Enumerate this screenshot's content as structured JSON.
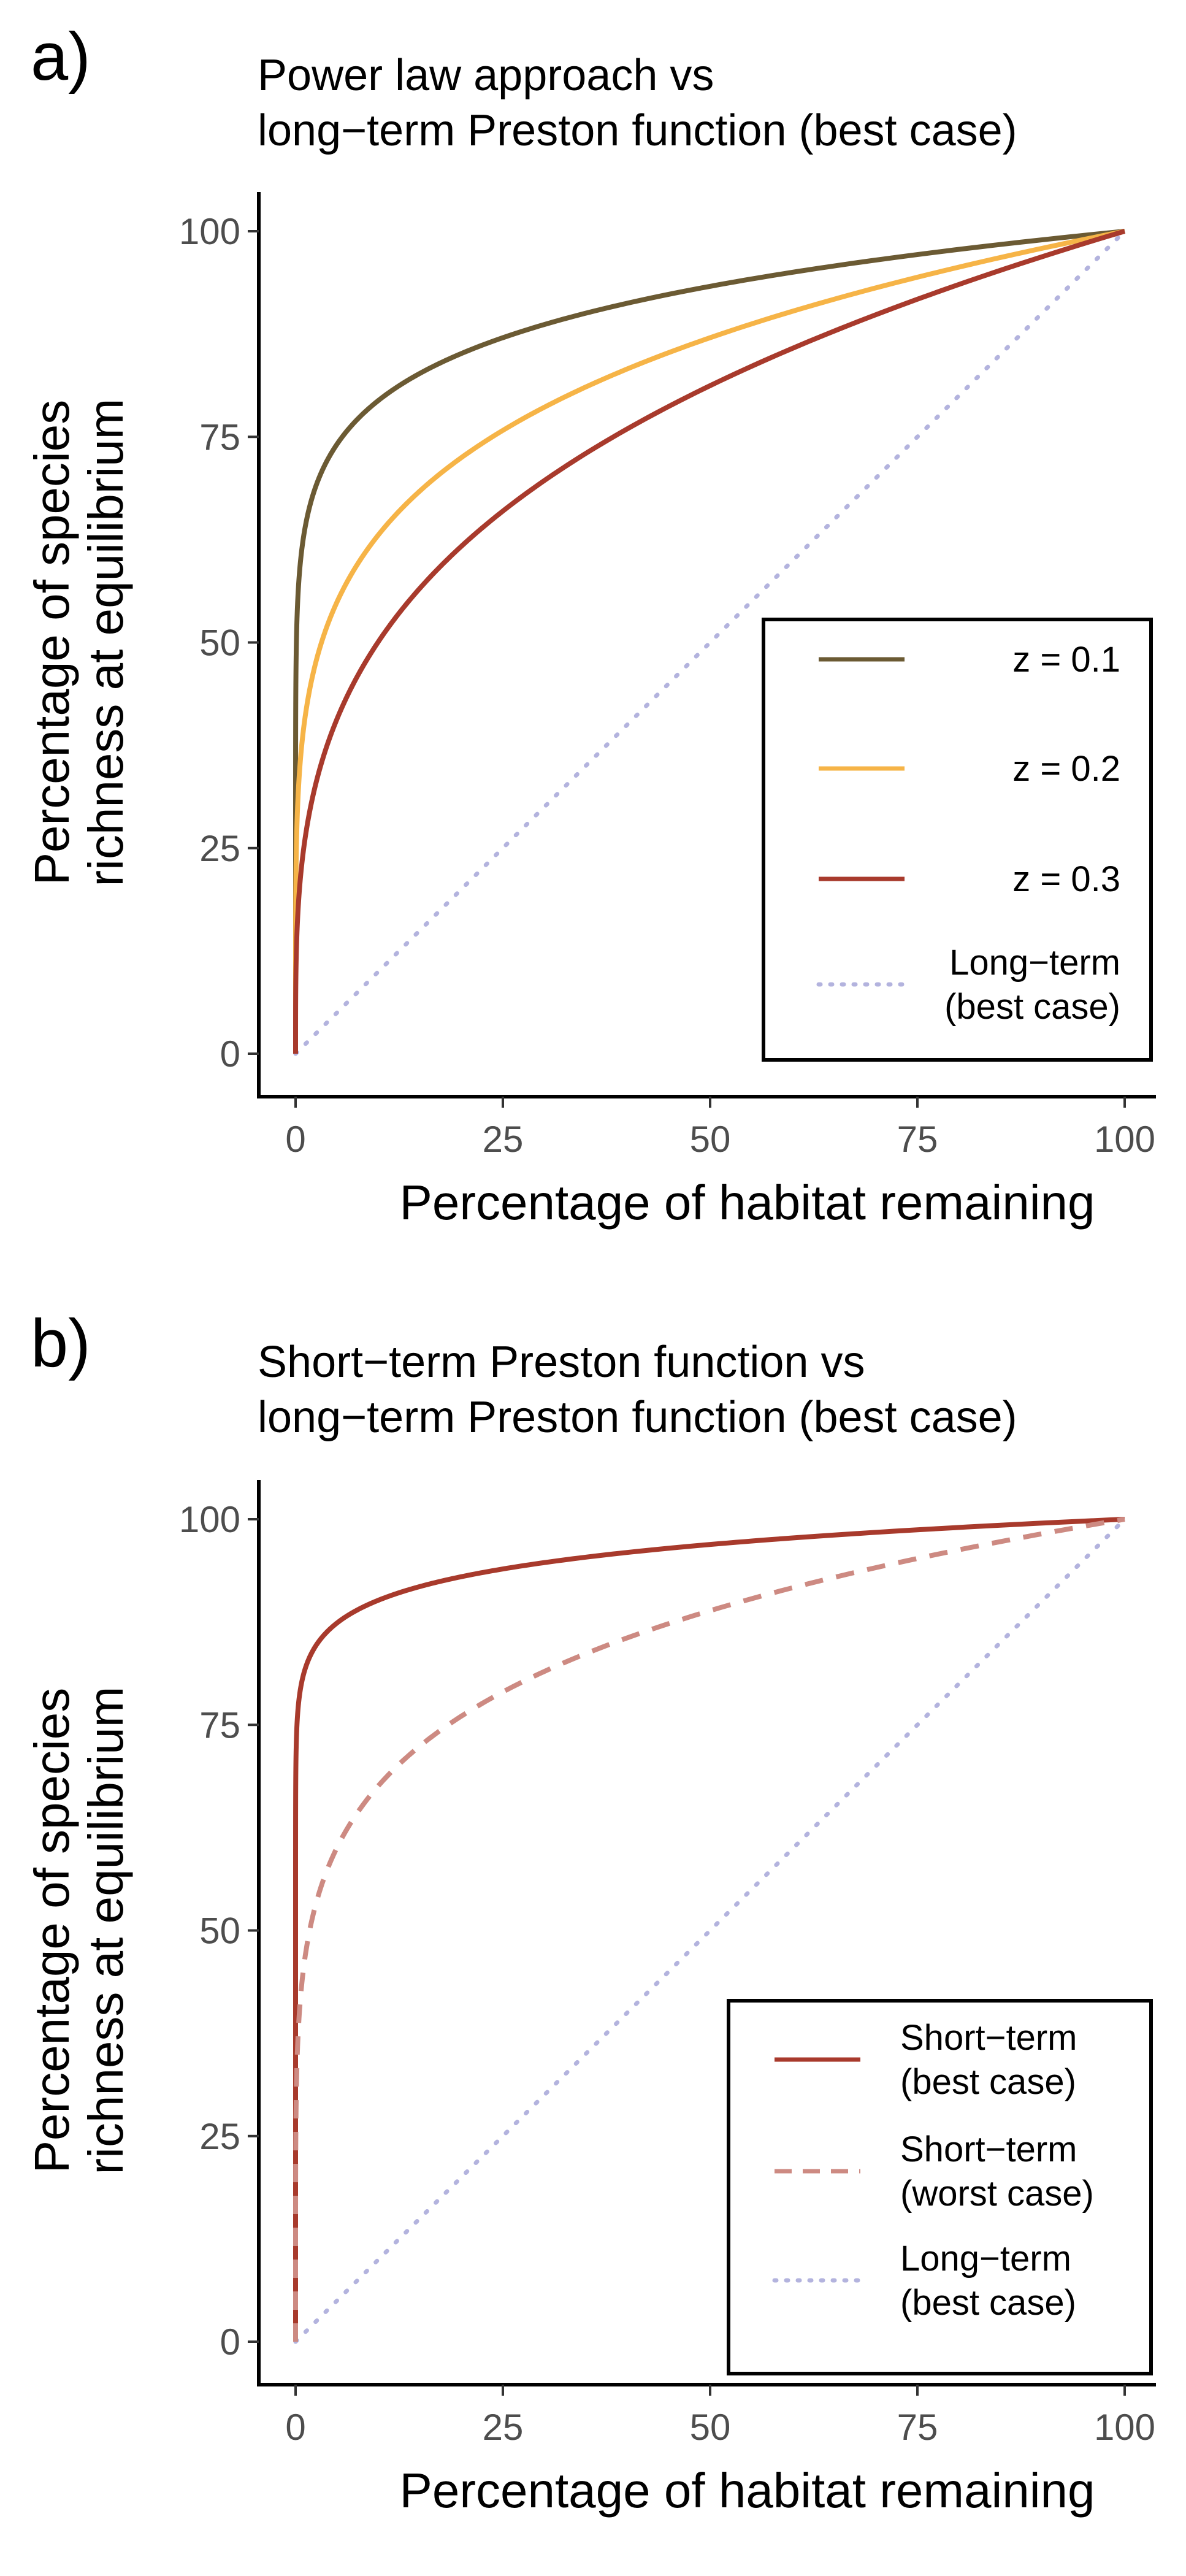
{
  "chart_data": [
    {
      "type": "line",
      "panel_label": "a)",
      "title": [
        "Power law approach vs",
        "long−term Preston function (best case)"
      ],
      "xlabel": "Percentage of habitat remaining",
      "ylabel": [
        "Percentage of species",
        "richness at equilibrium"
      ],
      "xlim": [
        0,
        100
      ],
      "ylim": [
        0,
        100
      ],
      "x_ticks": [
        0,
        25,
        50,
        75,
        100
      ],
      "y_ticks": [
        0,
        25,
        50,
        75,
        100
      ],
      "grid": false,
      "legend_position": "bottom-right",
      "series": [
        {
          "name": "z = 0.1",
          "legend_lines": [
            "z = 0.1"
          ],
          "color": "#6b5a33",
          "style": "solid",
          "kind": "power",
          "z": 0.1
        },
        {
          "name": "z = 0.2",
          "legend_lines": [
            "z = 0.2"
          ],
          "color": "#f6b447",
          "style": "solid",
          "kind": "power",
          "z": 0.2
        },
        {
          "name": "z = 0.3",
          "legend_lines": [
            "z = 0.3"
          ],
          "color": "#a83a2c",
          "style": "solid",
          "kind": "power",
          "z": 0.3
        },
        {
          "name": "Long−term (best case)",
          "legend_lines": [
            "Long−term",
            "(best case)"
          ],
          "color": "#b3b3de",
          "style": "dotted",
          "kind": "linear"
        }
      ]
    },
    {
      "type": "line",
      "panel_label": "b)",
      "title": [
        "Short−term Preston function vs",
        "long−term Preston function (best case)"
      ],
      "xlabel": "Percentage of habitat remaining",
      "ylabel": [
        "Percentage of species",
        "richness at equilibrium"
      ],
      "xlim": [
        0,
        100
      ],
      "ylim": [
        0,
        100
      ],
      "x_ticks": [
        0,
        25,
        50,
        75,
        100
      ],
      "y_ticks": [
        0,
        25,
        50,
        75,
        100
      ],
      "grid": false,
      "legend_position": "bottom-right",
      "series": [
        {
          "name": "Short−term (best case)",
          "legend_lines": [
            "Short−term",
            "(best case)"
          ],
          "color": "#a83a2c",
          "style": "solid",
          "kind": "power",
          "z": 0.045
        },
        {
          "name": "Short−term (worst case)",
          "legend_lines": [
            "Short−term",
            "(worst case)"
          ],
          "color": "#cd8a82",
          "style": "dashed",
          "kind": "power",
          "z": 0.17
        },
        {
          "name": "Long−term (best case)",
          "legend_lines": [
            "Long−term",
            "(best case)"
          ],
          "color": "#b3b3de",
          "style": "dotted",
          "kind": "linear"
        }
      ]
    }
  ]
}
